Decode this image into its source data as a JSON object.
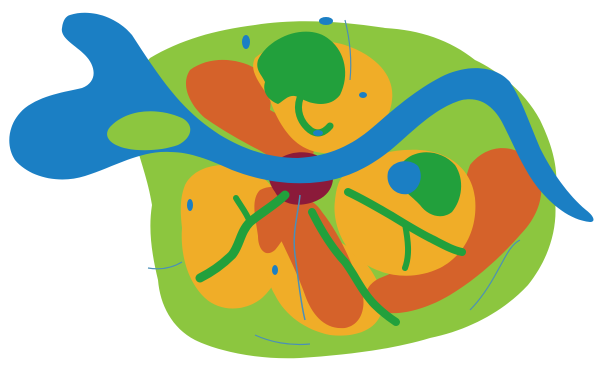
{
  "map": {
    "kind": "stylized urban land-use plan with river",
    "colors": {
      "background": "#ffffff",
      "outer_green": "#8cc63f",
      "forest_green": "#22a03c",
      "river_blue": "#1b7fc4",
      "orange": "#f0ad28",
      "dark_orange": "#d5622a",
      "core_maroon": "#8b1a3a",
      "stream_line": "#4a8fb8"
    },
    "regions": [
      {
        "id": "outer-area",
        "color_key": "outer_green"
      },
      {
        "id": "river",
        "color_key": "river_blue"
      },
      {
        "id": "north-forest",
        "color_key": "forest_green"
      },
      {
        "id": "east-forest",
        "color_key": "forest_green"
      },
      {
        "id": "west-district",
        "color_key": "orange"
      },
      {
        "id": "east-district",
        "color_key": "orange"
      },
      {
        "id": "south-district",
        "color_key": "orange"
      },
      {
        "id": "north-west-belt",
        "color_key": "dark_orange"
      },
      {
        "id": "east-belt",
        "color_key": "dark_orange"
      },
      {
        "id": "central-core",
        "color_key": "core_maroon"
      },
      {
        "id": "east-lake",
        "color_key": "river_blue"
      }
    ]
  }
}
